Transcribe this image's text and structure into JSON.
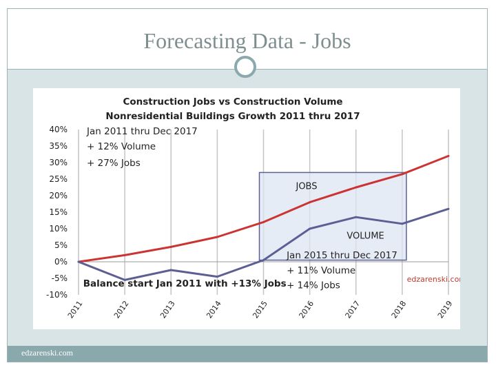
{
  "slide": {
    "title": "Forecasting Data - Jobs",
    "footer": "edzarenski.com"
  },
  "chart_data": {
    "type": "line",
    "title": "Construction Jobs vs Construction Volume",
    "subtitle": "Nonresidential Buildings Growth 2011 thru 2017",
    "xlabel": "",
    "ylabel": "",
    "x": [
      "2011",
      "2012",
      "2013",
      "2014",
      "2015",
      "2016",
      "2017",
      "2018",
      "2019"
    ],
    "y_ticks": [
      -10,
      -5,
      0,
      5,
      10,
      15,
      20,
      25,
      30,
      35,
      40
    ],
    "y_tick_labels": [
      "-10%",
      "-5%",
      "0%",
      "5%",
      "10%",
      "15%",
      "20%",
      "25%",
      "30%",
      "35%",
      "40%"
    ],
    "ylim": [
      -10,
      40
    ],
    "grid": "vertical",
    "series": [
      {
        "name": "JOBS",
        "color": "#cc3333",
        "values": [
          0,
          2,
          4.5,
          7.5,
          12,
          18,
          22.5,
          26.5,
          32
        ]
      },
      {
        "name": "VOLUME",
        "color": "#5c5f93",
        "values": [
          0,
          -5.5,
          -2.5,
          -4.5,
          0.5,
          10,
          13.5,
          11.5,
          16
        ]
      }
    ],
    "annotations": [
      {
        "text": "Jan 2011 thru Dec 2017",
        "x_index": 0,
        "y": 38.5
      },
      {
        "text": "+ 12% Volume",
        "x_index": 0,
        "y": 34
      },
      {
        "text": "+ 27% Jobs",
        "x_index": 0,
        "y": 29
      },
      {
        "text": "Jan 2015 thru Dec 2017",
        "x_index": 4.5,
        "y": 1
      },
      {
        "text": "+ 11% Volume",
        "x_index": 4.5,
        "y": -3.5
      },
      {
        "text": "+ 14% Jobs",
        "x_index": 4.5,
        "y": -8
      },
      {
        "text": "Balance start Jan 2011 with +13% Jobs",
        "x_index": 0.1,
        "y": -7.5
      },
      {
        "text": "edzarenski.com",
        "x_index": 7.1,
        "y": -6
      }
    ],
    "highlight_box": {
      "x_from": "2015",
      "x_to": "2018",
      "y_from": 0.5,
      "y_to": 27
    },
    "series_labels": [
      {
        "series": "JOBS",
        "x_index": 4.7,
        "y": 22
      },
      {
        "series": "VOLUME",
        "x_index": 5.8,
        "y": 7
      }
    ]
  }
}
